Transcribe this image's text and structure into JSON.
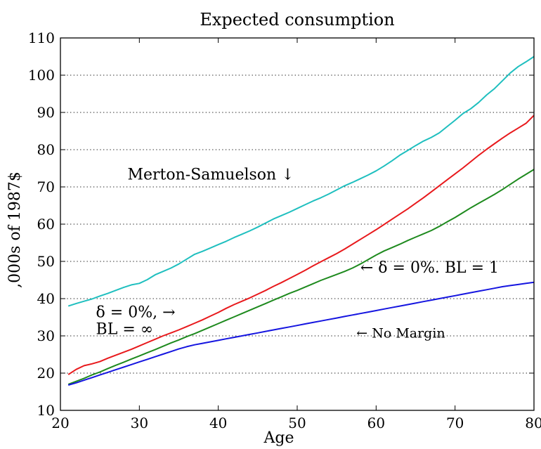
{
  "chart_data": {
    "type": "line",
    "title": "Expected consumption",
    "xlabel": "Age",
    "ylabel": ",000s of 1987$",
    "xlim": [
      20,
      80
    ],
    "ylim": [
      10,
      110
    ],
    "x_ticks": [
      20,
      30,
      40,
      50,
      60,
      70,
      80
    ],
    "y_ticks": [
      10,
      20,
      30,
      40,
      50,
      60,
      70,
      80,
      90,
      100,
      110
    ],
    "grid": "horizontal dotted",
    "x": [
      21,
      22,
      23,
      24,
      25,
      26,
      27,
      28,
      29,
      30,
      31,
      32,
      33,
      34,
      35,
      36,
      37,
      38,
      39,
      40,
      41,
      42,
      43,
      44,
      45,
      46,
      47,
      48,
      49,
      50,
      51,
      52,
      53,
      54,
      55,
      56,
      57,
      58,
      59,
      60,
      61,
      62,
      63,
      64,
      65,
      66,
      67,
      68,
      69,
      70,
      71,
      72,
      73,
      74,
      75,
      76,
      77,
      78,
      79,
      80
    ],
    "series": [
      {
        "color": "#1fbfbf",
        "values": [
          38.0,
          38.7,
          39.3,
          39.9,
          40.7,
          41.4,
          42.2,
          43.0,
          43.7,
          44.1,
          45.1,
          46.4,
          47.3,
          48.2,
          49.3,
          50.6,
          51.9,
          52.7,
          53.6,
          54.5,
          55.4,
          56.4,
          57.3,
          58.2,
          59.2,
          60.3,
          61.4,
          62.3,
          63.2,
          64.2,
          65.2,
          66.2,
          67.1,
          68.1,
          69.2,
          70.3,
          71.2,
          72.2,
          73.2,
          74.3,
          75.6,
          77.0,
          78.5,
          79.8,
          81.1,
          82.3,
          83.3,
          84.5,
          86.2,
          87.9,
          89.7,
          91.0,
          92.7,
          94.7,
          96.4,
          98.5,
          100.6,
          102.3,
          103.6,
          105.0
        ]
      },
      {
        "color": "#e8191c",
        "values": [
          19.6,
          21.0,
          22.0,
          22.5,
          23.1,
          24.0,
          24.8,
          25.6,
          26.4,
          27.3,
          28.2,
          29.1,
          30.0,
          30.8,
          31.6,
          32.5,
          33.4,
          34.3,
          35.3,
          36.3,
          37.4,
          38.4,
          39.3,
          40.2,
          41.2,
          42.2,
          43.3,
          44.3,
          45.4,
          46.5,
          47.6,
          48.8,
          49.9,
          51.0,
          52.1,
          53.3,
          54.6,
          55.9,
          57.2,
          58.5,
          59.9,
          61.3,
          62.7,
          64.1,
          65.6,
          67.1,
          68.7,
          70.3,
          71.9,
          73.5,
          75.1,
          76.8,
          78.5,
          80.1,
          81.6,
          83.1,
          84.5,
          85.8,
          87.1,
          89.2
        ]
      },
      {
        "color": "#1e8a1e",
        "values": [
          17.0,
          17.8,
          18.6,
          19.5,
          20.3,
          21.2,
          22.1,
          22.9,
          23.8,
          24.6,
          25.5,
          26.3,
          27.2,
          28.1,
          28.9,
          29.8,
          30.6,
          31.5,
          32.4,
          33.3,
          34.2,
          35.1,
          36.0,
          36.9,
          37.8,
          38.7,
          39.6,
          40.5,
          41.4,
          42.2,
          43.1,
          44.0,
          44.9,
          45.7,
          46.5,
          47.3,
          48.2,
          49.3,
          50.5,
          51.7,
          52.8,
          53.7,
          54.6,
          55.6,
          56.5,
          57.4,
          58.3,
          59.4,
          60.6,
          61.8,
          63.1,
          64.4,
          65.6,
          66.8,
          68.0,
          69.3,
          70.7,
          72.1,
          73.4,
          74.7
        ]
      },
      {
        "color": "#1515e0",
        "values": [
          16.8,
          17.4,
          18.1,
          18.8,
          19.5,
          20.2,
          20.9,
          21.6,
          22.3,
          23.0,
          23.7,
          24.4,
          25.1,
          25.8,
          26.5,
          27.1,
          27.6,
          28.0,
          28.4,
          28.8,
          29.2,
          29.6,
          30.0,
          30.4,
          30.8,
          31.2,
          31.6,
          32.0,
          32.4,
          32.8,
          33.2,
          33.6,
          34.0,
          34.4,
          34.8,
          35.2,
          35.6,
          36.0,
          36.4,
          36.8,
          37.2,
          37.6,
          38.0,
          38.4,
          38.8,
          39.2,
          39.6,
          40.0,
          40.4,
          40.8,
          41.2,
          41.6,
          42.0,
          42.4,
          42.8,
          43.2,
          43.5,
          43.8,
          44.1,
          44.4
        ]
      }
    ],
    "annotations": [
      {
        "text": "Merton-Samuelson ↓",
        "x": 28.5,
        "y": 72.0,
        "style": "large"
      },
      {
        "text": "← δ = 0%. BL = 1",
        "x": 58.0,
        "y": 47.0,
        "style": "large"
      },
      {
        "text": "δ  =  0%, →",
        "x": 24.5,
        "y": 35.0,
        "style": "large"
      },
      {
        "text": "BL = ∞",
        "x": 24.5,
        "y": 30.5,
        "style": "large"
      },
      {
        "text": "← No Margin",
        "x": 57.5,
        "y": 29.5,
        "style": "small"
      }
    ]
  }
}
